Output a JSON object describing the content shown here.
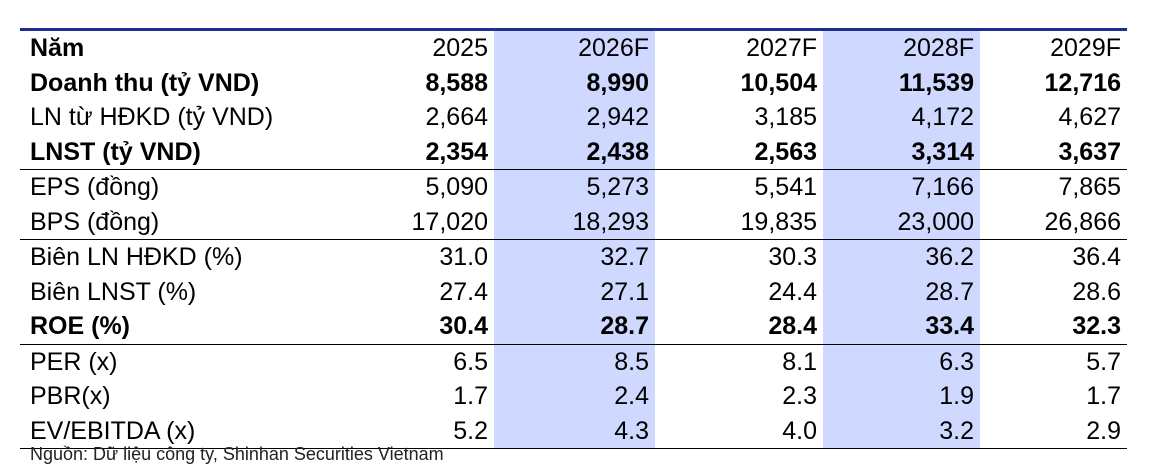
{
  "table": {
    "headers": [
      "Năm",
      "2025",
      "2026F",
      "2027F",
      "2028F",
      "2029F"
    ],
    "rows": [
      {
        "label": "Doanh thu (tỷ VND)",
        "values": [
          "8,588",
          "8,990",
          "10,504",
          "11,539",
          "12,716"
        ],
        "bold": true
      },
      {
        "label": "LN từ HĐKD (tỷ VND)",
        "values": [
          "2,664",
          "2,942",
          "3,185",
          "4,172",
          "4,627"
        ],
        "bold": false
      },
      {
        "label": "LNST (tỷ VND)",
        "values": [
          "2,354",
          "2,438",
          "2,563",
          "3,314",
          "3,637"
        ],
        "bold": true
      },
      {
        "label": "EPS (đồng)",
        "values": [
          "5,090",
          "5,273",
          "5,541",
          "7,166",
          "7,865"
        ],
        "bold": false
      },
      {
        "label": "BPS (đồng)",
        "values": [
          "17,020",
          "18,293",
          "19,835",
          "23,000",
          "26,866"
        ],
        "bold": false
      },
      {
        "label": "Biên LN HĐKD (%)",
        "values": [
          "31.0",
          "32.7",
          "30.3",
          "36.2",
          "36.4"
        ],
        "bold": false
      },
      {
        "label": "Biên LNST (%)",
        "values": [
          "27.4",
          "27.1",
          "24.4",
          "28.7",
          "28.6"
        ],
        "bold": false
      },
      {
        "label": "ROE (%)",
        "values": [
          "30.4",
          "28.7",
          "28.4",
          "33.4",
          "32.3"
        ],
        "bold": true
      },
      {
        "label": "PER (x)",
        "values": [
          "6.5",
          "8.5",
          "8.1",
          "6.3",
          "5.7"
        ],
        "bold": false
      },
      {
        "label": "PBR(x)",
        "values": [
          "1.7",
          "2.4",
          "2.3",
          "1.9",
          "1.7"
        ],
        "bold": false
      },
      {
        "label": "EV/EBITDA (x)",
        "values": [
          "5.2",
          "4.3",
          "4.0",
          "3.2",
          "2.9"
        ],
        "bold": false
      }
    ]
  },
  "source": "Nguồn: Dữ liệu công ty, Shinhan Securities Vietnam",
  "colors": {
    "highlight_column": "#cfd9ff",
    "top_rule": "#1f2e8c"
  }
}
